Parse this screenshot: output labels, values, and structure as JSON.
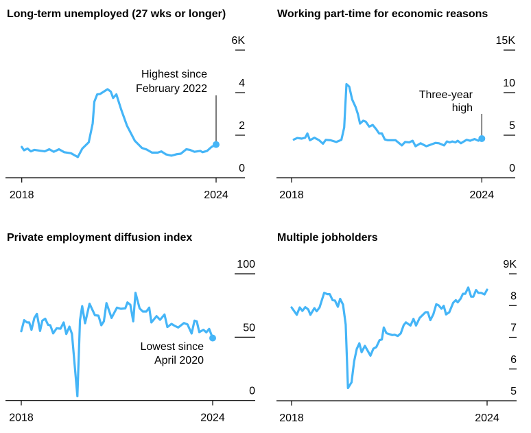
{
  "colors": {
    "series": "#45b5f7",
    "axis": "#000000",
    "annotation_line": "#333333"
  },
  "chart_data": [
    {
      "type": "line",
      "title": "Long-term unemployed (27 wks or longer)",
      "xlabel": "",
      "ylabel": "",
      "x_ticks": [
        {
          "value": 2018,
          "label": "2018"
        },
        {
          "value": 2024,
          "label": "2024"
        }
      ],
      "y_ticks": [
        {
          "value": 0,
          "label": "0"
        },
        {
          "value": 2,
          "label": "2"
        },
        {
          "value": 4,
          "label": "4"
        },
        {
          "value": 6,
          "label": "6K"
        }
      ],
      "ylim": [
        0,
        6
      ],
      "grid": false,
      "annotation": {
        "lines": [
          "Highest since",
          "February 2022"
        ],
        "x": 2024,
        "value": 1.56
      },
      "series": [
        {
          "name": "Long-term unemployed (thousands)",
          "points": [
            [
              2018.0,
              1.45
            ],
            [
              2018.07,
              1.29
            ],
            [
              2018.18,
              1.37
            ],
            [
              2018.28,
              1.24
            ],
            [
              2018.39,
              1.31
            ],
            [
              2018.71,
              1.24
            ],
            [
              2018.85,
              1.34
            ],
            [
              2018.99,
              1.22
            ],
            [
              2019.15,
              1.34
            ],
            [
              2019.31,
              1.2
            ],
            [
              2019.52,
              1.15
            ],
            [
              2019.73,
              0.97
            ],
            [
              2019.87,
              1.37
            ],
            [
              2020.07,
              1.67
            ],
            [
              2020.19,
              2.55
            ],
            [
              2020.24,
              3.57
            ],
            [
              2020.33,
              3.92
            ],
            [
              2020.42,
              3.94
            ],
            [
              2020.65,
              4.16
            ],
            [
              2020.75,
              4.05
            ],
            [
              2020.82,
              3.75
            ],
            [
              2020.92,
              3.92
            ],
            [
              2021.07,
              3.2
            ],
            [
              2021.25,
              2.44
            ],
            [
              2021.49,
              1.74
            ],
            [
              2021.71,
              1.4
            ],
            [
              2021.85,
              1.33
            ],
            [
              2022.02,
              1.18
            ],
            [
              2022.2,
              1.18
            ],
            [
              2022.31,
              1.24
            ],
            [
              2022.45,
              1.1
            ],
            [
              2022.62,
              1.04
            ],
            [
              2022.8,
              1.11
            ],
            [
              2022.91,
              1.13
            ],
            [
              2023.08,
              1.34
            ],
            [
              2023.19,
              1.31
            ],
            [
              2023.33,
              1.22
            ],
            [
              2023.51,
              1.26
            ],
            [
              2023.58,
              1.2
            ],
            [
              2023.72,
              1.26
            ],
            [
              2023.86,
              1.45
            ],
            [
              2024.0,
              1.56
            ]
          ]
        }
      ]
    },
    {
      "type": "line",
      "title": "Working part-time for economic reasons",
      "xlabel": "",
      "ylabel": "",
      "x_ticks": [
        {
          "value": 2018,
          "label": "2018"
        },
        {
          "value": 2024,
          "label": "2024"
        }
      ],
      "y_ticks": [
        {
          "value": 0,
          "label": "0"
        },
        {
          "value": 5,
          "label": "5"
        },
        {
          "value": 10,
          "label": "10"
        },
        {
          "value": 15,
          "label": "15K"
        }
      ],
      "ylim": [
        0,
        15
      ],
      "grid": false,
      "annotation": {
        "lines": [
          "Three-year",
          "high"
        ],
        "x": 2024,
        "value": 4.6
      },
      "series": [
        {
          "name": "Part-time for economic reasons (thousands)",
          "points": [
            [
              2018.07,
              4.48
            ],
            [
              2018.18,
              4.67
            ],
            [
              2018.32,
              4.6
            ],
            [
              2018.43,
              4.7
            ],
            [
              2018.5,
              5.2
            ],
            [
              2018.58,
              4.4
            ],
            [
              2018.72,
              4.7
            ],
            [
              2018.87,
              4.4
            ],
            [
              2018.99,
              4.0
            ],
            [
              2019.08,
              4.45
            ],
            [
              2019.23,
              4.4
            ],
            [
              2019.41,
              4.2
            ],
            [
              2019.57,
              4.45
            ],
            [
              2019.66,
              5.9
            ],
            [
              2019.73,
              11.0
            ],
            [
              2019.82,
              10.7
            ],
            [
              2019.91,
              9.2
            ],
            [
              2020.02,
              8.3
            ],
            [
              2020.09,
              7.5
            ],
            [
              2020.16,
              6.36
            ],
            [
              2020.26,
              6.7
            ],
            [
              2020.34,
              6.6
            ],
            [
              2020.45,
              6.0
            ],
            [
              2020.56,
              6.2
            ],
            [
              2020.67,
              5.7
            ],
            [
              2020.76,
              5.2
            ],
            [
              2020.85,
              5.2
            ],
            [
              2020.94,
              4.5
            ],
            [
              2021.03,
              4.4
            ],
            [
              2021.28,
              4.4
            ],
            [
              2021.48,
              3.8
            ],
            [
              2021.58,
              4.2
            ],
            [
              2021.71,
              4.15
            ],
            [
              2021.82,
              4.35
            ],
            [
              2021.91,
              3.7
            ],
            [
              2022.07,
              4.05
            ],
            [
              2022.25,
              3.7
            ],
            [
              2022.54,
              4.1
            ],
            [
              2022.65,
              4.05
            ],
            [
              2022.81,
              3.8
            ],
            [
              2022.9,
              4.27
            ],
            [
              2022.99,
              4.15
            ],
            [
              2023.07,
              4.27
            ],
            [
              2023.17,
              4.15
            ],
            [
              2023.24,
              4.35
            ],
            [
              2023.34,
              4.05
            ],
            [
              2023.52,
              4.46
            ],
            [
              2023.63,
              4.35
            ],
            [
              2023.77,
              4.55
            ],
            [
              2023.89,
              4.35
            ],
            [
              2024.0,
              4.6
            ]
          ]
        }
      ]
    },
    {
      "type": "line",
      "title": "Private employment diffusion index",
      "xlabel": "",
      "ylabel": "",
      "x_ticks": [
        {
          "value": 2018,
          "label": "2018"
        },
        {
          "value": 2024,
          "label": "2024"
        }
      ],
      "y_ticks": [
        {
          "value": 0,
          "label": "0"
        },
        {
          "value": 50,
          "label": "50"
        },
        {
          "value": 100,
          "label": "100"
        }
      ],
      "ylim": [
        0,
        100
      ],
      "grid": false,
      "annotation": {
        "lines": [
          "Lowest since",
          "April 2020"
        ],
        "x": 2024,
        "value": 49.3
      },
      "series": [
        {
          "name": "Diffusion index",
          "points": [
            [
              2018.0,
              54.7
            ],
            [
              2018.09,
              63.4
            ],
            [
              2018.18,
              61.6
            ],
            [
              2018.25,
              61.6
            ],
            [
              2018.32,
              55.8
            ],
            [
              2018.41,
              65.2
            ],
            [
              2018.49,
              68.4
            ],
            [
              2018.59,
              54.9
            ],
            [
              2018.66,
              63.0
            ],
            [
              2018.75,
              64.6
            ],
            [
              2018.84,
              59.7
            ],
            [
              2018.91,
              59.4
            ],
            [
              2019.0,
              53.0
            ],
            [
              2019.11,
              57.0
            ],
            [
              2019.23,
              56.7
            ],
            [
              2019.33,
              61.6
            ],
            [
              2019.41,
              52.5
            ],
            [
              2019.51,
              58.3
            ],
            [
              2019.59,
              52.5
            ],
            [
              2019.76,
              3.4
            ],
            [
              2019.84,
              63.4
            ],
            [
              2019.91,
              74.5
            ],
            [
              2020.0,
              61.0
            ],
            [
              2020.14,
              76.4
            ],
            [
              2020.31,
              67.3
            ],
            [
              2020.42,
              67.0
            ],
            [
              2020.51,
              59.4
            ],
            [
              2020.59,
              62.5
            ],
            [
              2020.67,
              76.9
            ],
            [
              2020.83,
              65.2
            ],
            [
              2021.0,
              73.3
            ],
            [
              2021.12,
              72.4
            ],
            [
              2021.26,
              72.7
            ],
            [
              2021.33,
              77.4
            ],
            [
              2021.42,
              75.6
            ],
            [
              2021.51,
              62.5
            ],
            [
              2021.58,
              85.0
            ],
            [
              2021.71,
              72.7
            ],
            [
              2021.81,
              70.2
            ],
            [
              2021.92,
              70.2
            ],
            [
              2022.01,
              73.3
            ],
            [
              2022.08,
              61.6
            ],
            [
              2022.24,
              66.6
            ],
            [
              2022.35,
              63.7
            ],
            [
              2022.49,
              67.9
            ],
            [
              2022.58,
              58.0
            ],
            [
              2022.71,
              60.5
            ],
            [
              2022.82,
              58.8
            ],
            [
              2022.92,
              57.6
            ],
            [
              2023.1,
              61.2
            ],
            [
              2023.21,
              60.1
            ],
            [
              2023.34,
              52.9
            ],
            [
              2023.43,
              63.0
            ],
            [
              2023.5,
              62.5
            ],
            [
              2023.58,
              54.0
            ],
            [
              2023.71,
              55.8
            ],
            [
              2023.8,
              53.8
            ],
            [
              2023.89,
              56.5
            ],
            [
              2024.0,
              49.3
            ]
          ]
        }
      ]
    },
    {
      "type": "line",
      "title": "Multiple jobholders",
      "xlabel": "",
      "ylabel": "",
      "x_ticks": [
        {
          "value": 2018,
          "label": "2018"
        },
        {
          "value": 2024,
          "label": "2024"
        }
      ],
      "y_ticks": [
        {
          "value": 5,
          "label": "5"
        },
        {
          "value": 6,
          "label": "6"
        },
        {
          "value": 7,
          "label": "7"
        },
        {
          "value": 8,
          "label": "8"
        },
        {
          "value": 9,
          "label": "9K"
        }
      ],
      "ylim": [
        5,
        9
      ],
      "grid": false,
      "annotation": null,
      "series": [
        {
          "name": "Multiple jobholders (thousands)",
          "points": [
            [
              2018.0,
              7.94
            ],
            [
              2018.16,
              7.71
            ],
            [
              2018.25,
              7.94
            ],
            [
              2018.33,
              7.83
            ],
            [
              2018.42,
              7.95
            ],
            [
              2018.51,
              7.88
            ],
            [
              2018.58,
              7.71
            ],
            [
              2018.7,
              7.92
            ],
            [
              2018.77,
              7.82
            ],
            [
              2018.86,
              7.94
            ],
            [
              2019.0,
              8.4
            ],
            [
              2019.1,
              8.36
            ],
            [
              2019.17,
              8.36
            ],
            [
              2019.26,
              8.17
            ],
            [
              2019.33,
              8.16
            ],
            [
              2019.42,
              7.96
            ],
            [
              2019.49,
              8.21
            ],
            [
              2019.58,
              8.03
            ],
            [
              2019.66,
              7.4
            ],
            [
              2019.73,
              5.4
            ],
            [
              2019.84,
              5.58
            ],
            [
              2019.92,
              6.24
            ],
            [
              2020.0,
              6.63
            ],
            [
              2020.08,
              6.81
            ],
            [
              2020.15,
              6.53
            ],
            [
              2020.25,
              6.73
            ],
            [
              2020.42,
              6.42
            ],
            [
              2020.51,
              6.64
            ],
            [
              2020.6,
              6.69
            ],
            [
              2020.7,
              6.91
            ],
            [
              2020.77,
              6.93
            ],
            [
              2020.83,
              7.31
            ],
            [
              2020.91,
              7.13
            ],
            [
              2021.09,
              7.07
            ],
            [
              2021.16,
              7.08
            ],
            [
              2021.26,
              7.04
            ],
            [
              2021.35,
              7.12
            ],
            [
              2021.44,
              7.38
            ],
            [
              2021.51,
              7.47
            ],
            [
              2021.65,
              7.37
            ],
            [
              2021.74,
              7.58
            ],
            [
              2021.82,
              7.37
            ],
            [
              2021.93,
              7.61
            ],
            [
              2022.11,
              7.79
            ],
            [
              2022.18,
              7.79
            ],
            [
              2022.26,
              7.54
            ],
            [
              2022.35,
              7.72
            ],
            [
              2022.44,
              8.04
            ],
            [
              2022.51,
              8.01
            ],
            [
              2022.6,
              7.9
            ],
            [
              2022.67,
              7.99
            ],
            [
              2022.74,
              7.72
            ],
            [
              2022.84,
              7.79
            ],
            [
              2022.96,
              8.09
            ],
            [
              2023.04,
              8.17
            ],
            [
              2023.1,
              8.1
            ],
            [
              2023.19,
              8.22
            ],
            [
              2023.26,
              8.37
            ],
            [
              2023.33,
              8.37
            ],
            [
              2023.42,
              8.57
            ],
            [
              2023.51,
              8.28
            ],
            [
              2023.58,
              8.28
            ],
            [
              2023.66,
              8.49
            ],
            [
              2023.73,
              8.4
            ],
            [
              2023.82,
              8.4
            ],
            [
              2023.92,
              8.35
            ],
            [
              2024.0,
              8.5
            ]
          ]
        }
      ]
    }
  ]
}
